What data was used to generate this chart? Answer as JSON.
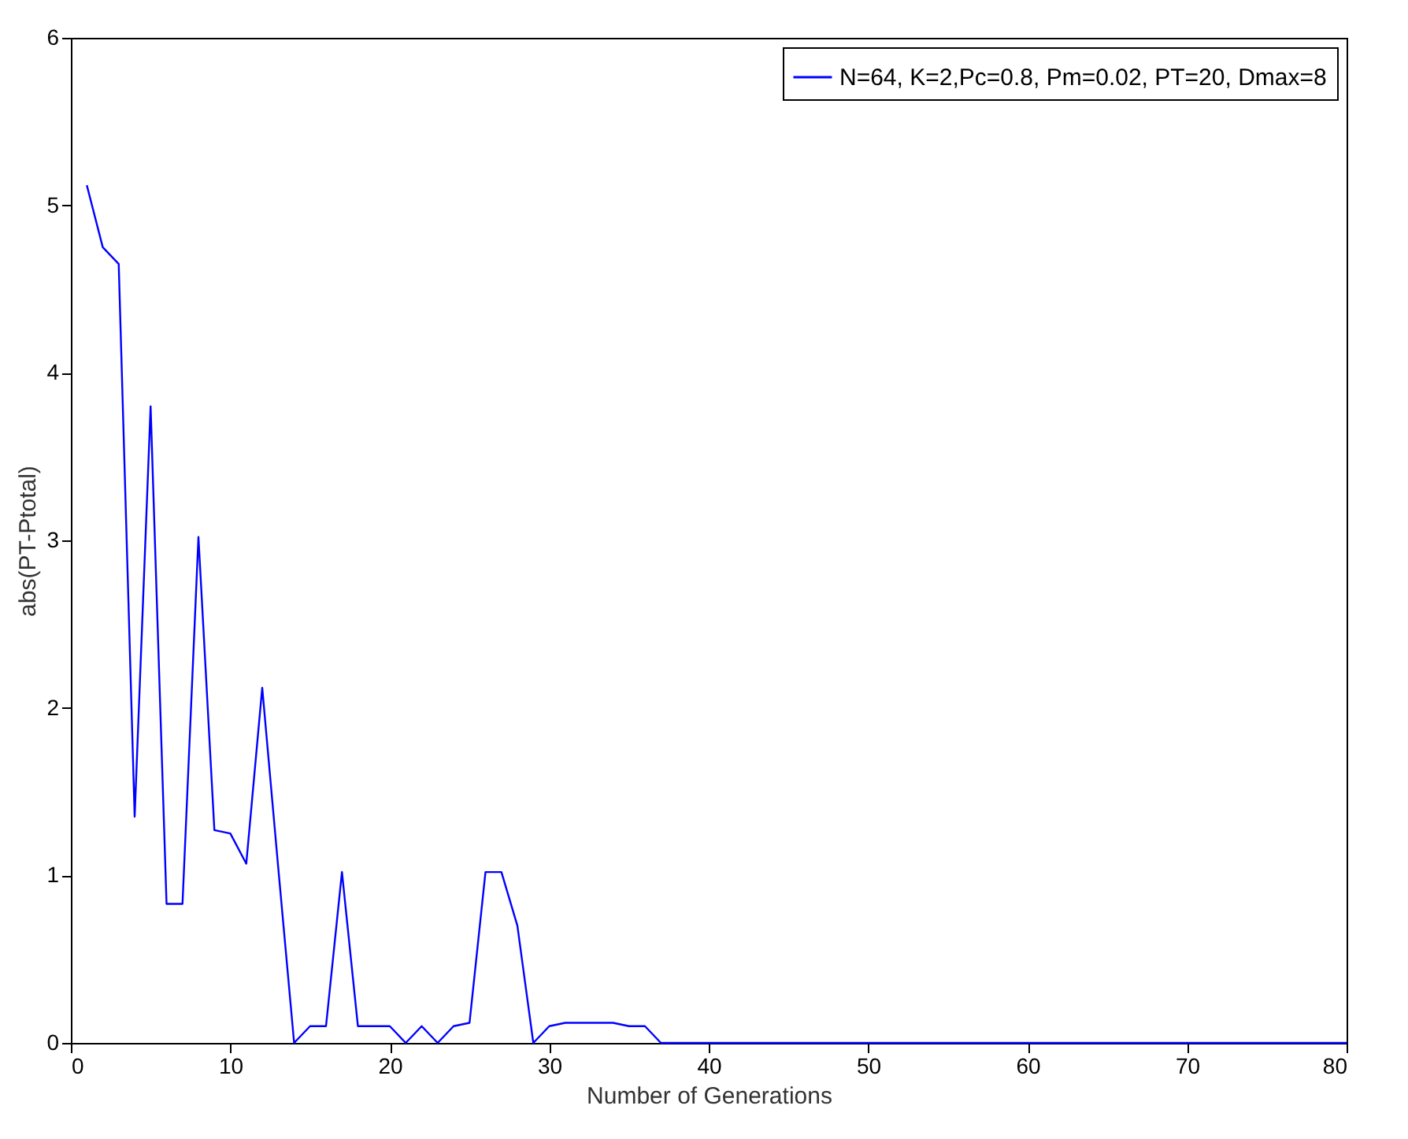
{
  "chart_data": {
    "type": "line",
    "xlabel": "Number of Generations",
    "ylabel": "abs(PT-Ptotal)",
    "x": [
      1,
      2,
      3,
      4,
      5,
      6,
      7,
      8,
      9,
      10,
      11,
      12,
      13,
      14,
      15,
      16,
      17,
      18,
      19,
      20,
      21,
      22,
      23,
      24,
      25,
      26,
      27,
      28,
      29,
      30,
      31,
      32,
      33,
      34,
      35,
      36,
      37,
      38,
      39,
      40,
      41,
      42,
      43,
      44,
      45,
      46,
      47,
      48,
      49,
      50,
      51,
      52,
      53,
      54,
      55,
      56,
      57,
      58,
      59,
      60,
      61,
      62,
      63,
      64,
      65,
      66,
      67,
      68,
      69,
      70,
      71,
      72,
      73,
      74,
      75,
      76,
      77,
      78,
      79,
      80
    ],
    "series": [
      {
        "name": "N=64, K=2,Pc=0.8, Pm=0.02, PT=20, Dmax=8",
        "color": "#0000ff",
        "values": [
          5.12,
          4.75,
          4.65,
          1.35,
          3.8,
          0.83,
          0.83,
          3.02,
          1.27,
          1.25,
          1.07,
          2.12,
          1.05,
          0,
          0.1,
          0.1,
          1.02,
          0.1,
          0.1,
          0.1,
          0,
          0.1,
          0,
          0.1,
          0.12,
          1.02,
          1.02,
          0.7,
          0,
          0.1,
          0.12,
          0.12,
          0.12,
          0.12,
          0.1,
          0.1,
          0,
          0,
          0,
          0,
          0,
          0,
          0,
          0,
          0,
          0,
          0,
          0,
          0,
          0,
          0,
          0,
          0,
          0,
          0,
          0,
          0,
          0,
          0,
          0,
          0,
          0,
          0,
          0,
          0,
          0,
          0,
          0,
          0,
          0,
          0,
          0,
          0,
          0,
          0,
          0,
          0,
          0,
          0,
          0
        ]
      }
    ],
    "xlim": [
      0,
      80
    ],
    "xticks": [
      0,
      10,
      20,
      30,
      40,
      50,
      60,
      70,
      80
    ],
    "ylim": [
      0,
      6
    ],
    "yticks": [
      0,
      1,
      2,
      3,
      4,
      5,
      6
    ],
    "grid": false,
    "legend": "top right",
    "marker": "none",
    "line_style": "solid"
  }
}
